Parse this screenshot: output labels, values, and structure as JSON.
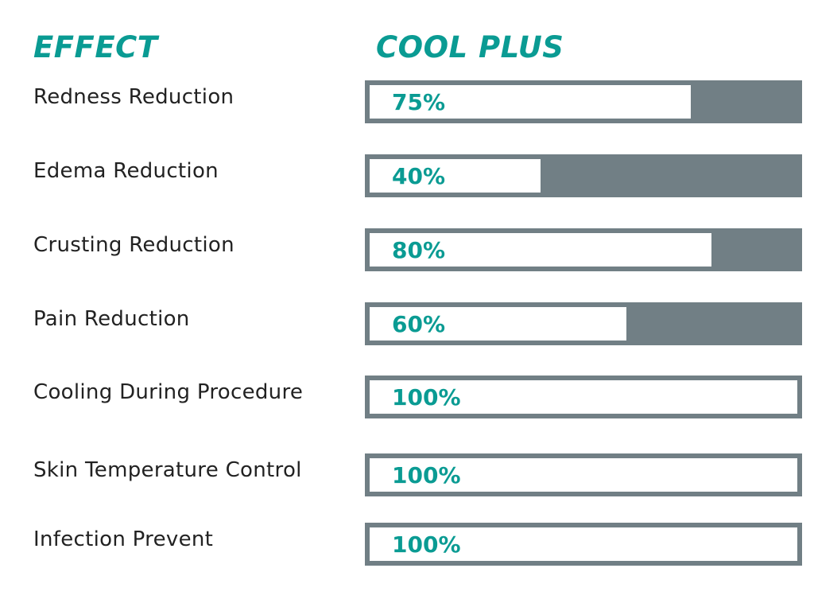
{
  "colors": {
    "accent": "#0a9b93",
    "track": "#717f85",
    "fill": "#ffffff",
    "label_text": "#222222"
  },
  "header": {
    "effect_label": "EFFECT",
    "product_label": "COOL PLUS"
  },
  "chart_data": {
    "type": "bar",
    "orientation": "horizontal",
    "series": [
      {
        "name": "COOL PLUS",
        "values": [
          75,
          40,
          80,
          60,
          100,
          100,
          100
        ]
      }
    ],
    "categories": [
      "Redness Reduction",
      "Edema Reduction",
      "Crusting Reduction",
      "Pain Reduction",
      "Cooling During Procedure",
      "Skin Temperature Control",
      "Infection Prevent"
    ],
    "value_labels": [
      "75%",
      "40%",
      "80%",
      "60%",
      "100%",
      "100%",
      "100%"
    ],
    "xlim": [
      0,
      100
    ]
  }
}
